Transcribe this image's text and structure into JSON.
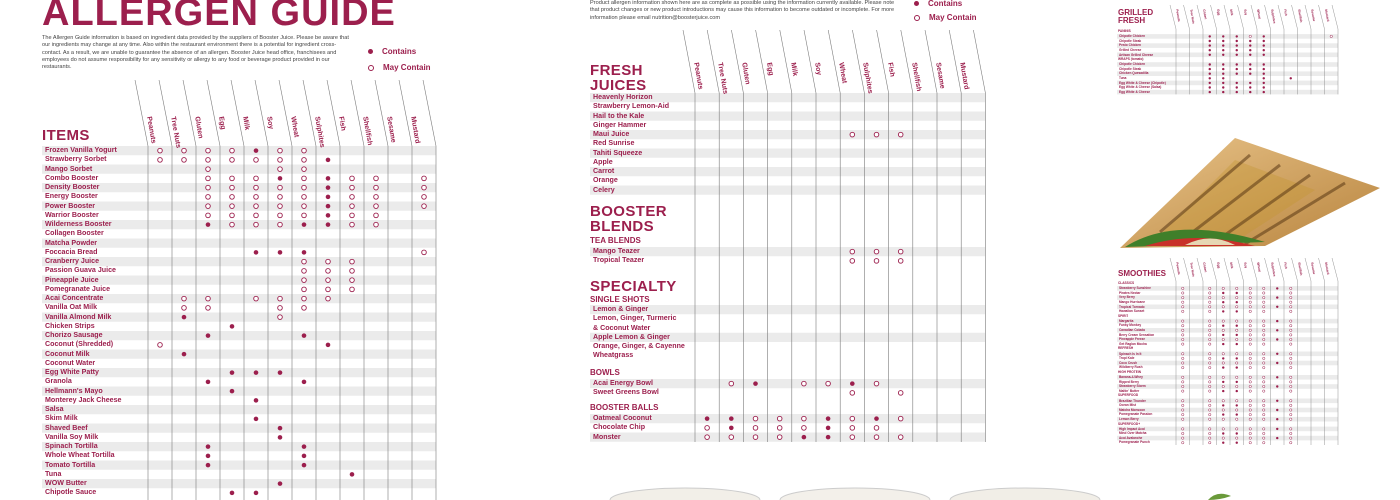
{
  "theme": {
    "accent": "#9c1f4d",
    "stripe": "#ebebeb",
    "line": "#7a7a7a"
  },
  "allergens": [
    "Peanuts",
    "Tree Nuts",
    "Gluten",
    "Egg",
    "Milk",
    "Soy",
    "Wheat",
    "Sulphites",
    "Fish",
    "Shellfish",
    "Sesame",
    "Mustard"
  ],
  "left": {
    "title": "ALLERGEN GUIDE",
    "intro": "The Allergen Guide information is based on ingredient data provided by the suppliers of Booster Juice. Please be aware that our ingredients may change at any time.  Also within the restaurant environment there is a potential for ingredient cross-contact.  As a result, we are unable to guarantee the absence of an allergen. Booster Juice head office, franchisees and employees do not assume responsibility for any sensitivity or allergy to any food or beverage product provided in our restaurants.",
    "legend_contains": "Contains",
    "legend_may": "May Contain",
    "section": "ITEMS",
    "rows": [
      {
        "name": "Frozen Vanilla Yogurt",
        "marks": [
          "o",
          "o",
          "o",
          "o",
          "c",
          "o",
          "o",
          "",
          "",
          "",
          "",
          ""
        ]
      },
      {
        "name": "Strawberry Sorbet",
        "marks": [
          "o",
          "o",
          "o",
          "o",
          "o",
          "o",
          "o",
          "c",
          "",
          "",
          "",
          ""
        ]
      },
      {
        "name": "Mango Sorbet",
        "marks": [
          "",
          "",
          "o",
          "",
          "",
          "o",
          "o",
          "",
          "",
          "",
          "",
          ""
        ]
      },
      {
        "name": "Combo Booster",
        "marks": [
          "",
          "",
          "o",
          "o",
          "o",
          "c",
          "o",
          "c",
          "o",
          "o",
          "",
          "o"
        ]
      },
      {
        "name": "Density Booster",
        "marks": [
          "",
          "",
          "o",
          "o",
          "o",
          "o",
          "o",
          "c",
          "o",
          "o",
          "",
          "o"
        ]
      },
      {
        "name": "Energy Booster",
        "marks": [
          "",
          "",
          "o",
          "o",
          "o",
          "o",
          "o",
          "c",
          "o",
          "o",
          "",
          "o"
        ]
      },
      {
        "name": "Power Booster",
        "marks": [
          "",
          "",
          "o",
          "o",
          "o",
          "o",
          "o",
          "c",
          "o",
          "o",
          "",
          "o"
        ]
      },
      {
        "name": "Warrior Booster",
        "marks": [
          "",
          "",
          "o",
          "o",
          "o",
          "o",
          "o",
          "c",
          "o",
          "o",
          "",
          ""
        ]
      },
      {
        "name": "Wilderness Booster",
        "marks": [
          "",
          "",
          "c",
          "o",
          "o",
          "o",
          "c",
          "c",
          "o",
          "o",
          "",
          ""
        ]
      },
      {
        "name": "Collagen Booster",
        "marks": [
          "",
          "",
          "",
          "",
          "",
          "",
          "",
          "",
          "",
          "",
          "",
          ""
        ]
      },
      {
        "name": "Matcha Powder",
        "marks": [
          "",
          "",
          "",
          "",
          "",
          "",
          "",
          "",
          "",
          "",
          "",
          ""
        ]
      },
      {
        "name": "Foccacia Bread",
        "marks": [
          "",
          "",
          "",
          "",
          "c",
          "c",
          "c",
          "",
          "",
          "",
          "",
          "o"
        ]
      },
      {
        "name": "Cranberry Juice",
        "marks": [
          "",
          "",
          "",
          "",
          "",
          "",
          "o",
          "o",
          "o",
          "",
          "",
          ""
        ]
      },
      {
        "name": "Passion Guava Juice",
        "marks": [
          "",
          "",
          "",
          "",
          "",
          "",
          "o",
          "o",
          "o",
          "",
          "",
          ""
        ]
      },
      {
        "name": "Pineapple Juice",
        "marks": [
          "",
          "",
          "",
          "",
          "",
          "",
          "o",
          "o",
          "o",
          "",
          "",
          ""
        ]
      },
      {
        "name": "Pomegranate Juice",
        "marks": [
          "",
          "",
          "",
          "",
          "",
          "",
          "o",
          "o",
          "o",
          "",
          "",
          ""
        ]
      },
      {
        "name": "Acai Concentrate",
        "marks": [
          "",
          "o",
          "o",
          "",
          "o",
          "o",
          "o",
          "o",
          "",
          "",
          "",
          ""
        ]
      },
      {
        "name": "Vanilla Oat Milk",
        "marks": [
          "",
          "o",
          "o",
          "",
          "",
          "o",
          "o",
          "",
          "",
          "",
          "",
          ""
        ]
      },
      {
        "name": "Vanilla Almond Milk",
        "marks": [
          "",
          "c",
          "",
          "",
          "",
          "o",
          "",
          "",
          "",
          "",
          "",
          ""
        ]
      },
      {
        "name": "Chicken Strips",
        "marks": [
          "",
          "",
          "",
          "c",
          "",
          "",
          "",
          "",
          "",
          "",
          "",
          ""
        ]
      },
      {
        "name": "Chorizo Sausage",
        "marks": [
          "",
          "",
          "c",
          "",
          "",
          "",
          "c",
          "",
          "",
          "",
          "",
          ""
        ]
      },
      {
        "name": "Coconut (Shredded)",
        "marks": [
          "o",
          "",
          "",
          "",
          "",
          "",
          "",
          "c",
          "",
          "",
          "",
          ""
        ]
      },
      {
        "name": "Coconut Milk",
        "marks": [
          "",
          "c",
          "",
          "",
          "",
          "",
          "",
          "",
          "",
          "",
          "",
          ""
        ]
      },
      {
        "name": "Coconut Water",
        "marks": [
          "",
          "",
          "",
          "",
          "",
          "",
          "",
          "",
          "",
          "",
          "",
          ""
        ]
      },
      {
        "name": "Egg White Patty",
        "marks": [
          "",
          "",
          "",
          "c",
          "c",
          "c",
          "",
          "",
          "",
          "",
          "",
          ""
        ]
      },
      {
        "name": "Granola",
        "marks": [
          "",
          "",
          "c",
          "",
          "",
          "",
          "c",
          "",
          "",
          "",
          "",
          ""
        ]
      },
      {
        "name": "Hellmann's Mayo",
        "marks": [
          "",
          "",
          "",
          "c",
          "",
          "",
          "",
          "",
          "",
          "",
          "",
          ""
        ]
      },
      {
        "name": "Monterey Jack Cheese",
        "marks": [
          "",
          "",
          "",
          "",
          "c",
          "",
          "",
          "",
          "",
          "",
          "",
          ""
        ]
      },
      {
        "name": "Salsa",
        "marks": [
          "",
          "",
          "",
          "",
          "",
          "",
          "",
          "",
          "",
          "",
          "",
          ""
        ]
      },
      {
        "name": "Skim Milk",
        "marks": [
          "",
          "",
          "",
          "",
          "c",
          "",
          "",
          "",
          "",
          "",
          "",
          ""
        ]
      },
      {
        "name": "Shaved Beef",
        "marks": [
          "",
          "",
          "",
          "",
          "",
          "c",
          "",
          "",
          "",
          "",
          "",
          ""
        ]
      },
      {
        "name": "Vanilla Soy Milk",
        "marks": [
          "",
          "",
          "",
          "",
          "",
          "c",
          "",
          "",
          "",
          "",
          "",
          ""
        ]
      },
      {
        "name": "Spinach Tortilla",
        "marks": [
          "",
          "",
          "c",
          "",
          "",
          "",
          "c",
          "",
          "",
          "",
          "",
          ""
        ]
      },
      {
        "name": "Whole Wheat Tortilla",
        "marks": [
          "",
          "",
          "c",
          "",
          "",
          "",
          "c",
          "",
          "",
          "",
          "",
          ""
        ]
      },
      {
        "name": "Tomato Tortilla",
        "marks": [
          "",
          "",
          "c",
          "",
          "",
          "",
          "c",
          "",
          "",
          "",
          "",
          ""
        ]
      },
      {
        "name": "Tuna",
        "marks": [
          "",
          "",
          "",
          "",
          "",
          "",
          "",
          "",
          "c",
          "",
          "",
          ""
        ]
      },
      {
        "name": "WOW Butter",
        "marks": [
          "",
          "",
          "",
          "",
          "",
          "c",
          "",
          "",
          "",
          "",
          "",
          ""
        ]
      },
      {
        "name": "Chipotle Sauce",
        "marks": [
          "",
          "",
          "",
          "c",
          "c",
          "",
          "",
          "",
          "",
          "",
          "",
          ""
        ]
      }
    ]
  },
  "middle": {
    "intro": "Product allergen information shown here are as complete as possible using the information currently available. Please note that product changes or new product introductions may cause this information to become outdated or incomplete. For more information please email  nutrition@boosterjuice.com",
    "legend_contains": "Contains",
    "legend_may": "May Contain",
    "fresh_title_1": "FRESH",
    "fresh_title_2": "JUICES",
    "fresh_rows": [
      {
        "name": "Heavenly Horizon",
        "marks": [
          "",
          "",
          "",
          "",
          "",
          "",
          "",
          "",
          "",
          "",
          "",
          ""
        ]
      },
      {
        "name": "Strawberry Lemon-Aid",
        "marks": [
          "",
          "",
          "",
          "",
          "",
          "",
          "",
          "",
          "",
          "",
          "",
          ""
        ]
      },
      {
        "name": "Hail to the Kale",
        "marks": [
          "",
          "",
          "",
          "",
          "",
          "",
          "",
          "",
          "",
          "",
          "",
          ""
        ]
      },
      {
        "name": "Ginger Hammer",
        "marks": [
          "",
          "",
          "",
          "",
          "",
          "",
          "",
          "",
          "",
          "",
          "",
          ""
        ]
      },
      {
        "name": "Maui Juice",
        "marks": [
          "",
          "",
          "",
          "",
          "",
          "",
          "o",
          "o",
          "o",
          "",
          "",
          ""
        ]
      },
      {
        "name": "Red Sunrise",
        "marks": [
          "",
          "",
          "",
          "",
          "",
          "",
          "",
          "",
          "",
          "",
          "",
          ""
        ]
      },
      {
        "name": "Tahiti Squeeze",
        "marks": [
          "",
          "",
          "",
          "",
          "",
          "",
          "",
          "",
          "",
          "",
          "",
          ""
        ]
      },
      {
        "name": "Apple",
        "marks": [
          "",
          "",
          "",
          "",
          "",
          "",
          "",
          "",
          "",
          "",
          "",
          ""
        ]
      },
      {
        "name": "Carrot",
        "marks": [
          "",
          "",
          "",
          "",
          "",
          "",
          "",
          "",
          "",
          "",
          "",
          ""
        ]
      },
      {
        "name": "Orange",
        "marks": [
          "",
          "",
          "",
          "",
          "",
          "",
          "",
          "",
          "",
          "",
          "",
          ""
        ]
      },
      {
        "name": "Celery",
        "marks": [
          "",
          "",
          "",
          "",
          "",
          "",
          "",
          "",
          "",
          "",
          "",
          ""
        ]
      }
    ],
    "booster_title_1": "BOOSTER",
    "booster_title_2": "BLENDS",
    "tea_label": "TEA BLENDS",
    "tea_rows": [
      {
        "name": "Mango Teazer",
        "marks": [
          "",
          "",
          "",
          "",
          "",
          "",
          "o",
          "o",
          "o",
          "",
          "",
          ""
        ]
      },
      {
        "name": "Tropical Teazer",
        "marks": [
          "",
          "",
          "",
          "",
          "",
          "",
          "o",
          "o",
          "o",
          "",
          "",
          ""
        ]
      }
    ],
    "specialty_title": "SPECIALTY",
    "shots_label": "SINGLE SHOTS",
    "shots_rows": [
      {
        "name": "Lemon & Ginger",
        "marks": [
          "",
          "",
          "",
          "",
          "",
          "",
          "",
          "",
          "",
          "",
          "",
          ""
        ],
        "h": 1
      },
      {
        "name": "Lemon, Ginger, Turmeric\n& Coconut Water",
        "marks": [
          "",
          "",
          "",
          "",
          "",
          "",
          "",
          "",
          "",
          "",
          "",
          ""
        ],
        "h": 2
      },
      {
        "name": "Apple Lemon & Ginger",
        "marks": [
          "",
          "",
          "",
          "",
          "",
          "",
          "",
          "",
          "",
          "",
          "",
          ""
        ],
        "h": 1
      },
      {
        "name": "Orange, Ginger, & Cayenne\nWheatgrass",
        "marks": [
          "",
          "",
          "",
          "",
          "",
          "",
          "",
          "",
          "",
          "",
          "",
          ""
        ],
        "h": 2
      }
    ],
    "bowls_label": "BOWLS",
    "bowls_rows": [
      {
        "name": "Acai Energy Bowl",
        "marks": [
          "",
          "o",
          "c",
          "",
          "o",
          "o",
          "c",
          "o",
          "",
          "",
          "",
          ""
        ]
      },
      {
        "name": "Sweet Greens Bowl",
        "marks": [
          "",
          "",
          "",
          "",
          "",
          "",
          "o",
          "",
          "o",
          "",
          "",
          ""
        ]
      }
    ],
    "balls_label": "BOOSTER BALLS",
    "balls_rows": [
      {
        "name": "Oatmeal Coconut",
        "marks": [
          "c",
          "c",
          "o",
          "o",
          "o",
          "c",
          "o",
          "c",
          "o",
          "",
          "",
          ""
        ]
      },
      {
        "name": "Chocolate Chip",
        "marks": [
          "o",
          "c",
          "o",
          "o",
          "o",
          "c",
          "o",
          "o",
          "",
          "",
          "",
          ""
        ]
      },
      {
        "name": "Monster",
        "marks": [
          "o",
          "o",
          "o",
          "o",
          "c",
          "c",
          "o",
          "o",
          "o",
          "",
          "",
          ""
        ]
      }
    ]
  },
  "right": {
    "grilled_title_1": "GRILLED",
    "grilled_title_2": "FRESH",
    "grilled_groups": [
      {
        "label": "PANINIS",
        "items": [
          "Chipotle Chicken",
          "Chipotle Steak",
          "Pesto Chicken",
          "Grilled Cheese",
          "Artisan Grilled Cheese"
        ]
      },
      {
        "label": "WRAPS (tomato)",
        "items": [
          "Chipotle Chicken",
          "Chipotle Steak",
          "Chicken Quesadilla",
          "Tuna",
          "Egg White & Cheese (Chipotle)",
          "Egg White & Cheese (Salsa)",
          "Egg White & Cheese"
        ]
      }
    ],
    "smoothies_title": "SMOOTHIES",
    "smoothie_groups": [
      {
        "label": "CLASSICS",
        "items": [
          "Strawberry Sunshine",
          "Pirates Nectar",
          "Very Berry",
          "Mango Hurricane",
          "Tropical Tornado",
          "Hawaiian Sunset"
        ]
      },
      {
        "label": "SPIRIT",
        "items": [
          "Margarita",
          "Funky Monkey",
          "Canadian Colada",
          "Berry Cream Sensation",
          "Pineapple Freeze",
          "Get Raglan Mocha"
        ]
      },
      {
        "label": "REFRESH",
        "items": [
          "Spinach Is In It",
          "Tropi Kale",
          "Coco Crush",
          "Wildberry Rush"
        ]
      },
      {
        "label": "HIGH PROTEIN",
        "items": [
          "Banana-4-Whey",
          "Ripped Berry",
          "Strawberry Storm",
          "Maltin' Butter"
        ]
      },
      {
        "label": "SUPERFOOD",
        "items": [
          "Brazilian Thunder",
          "Ocean Mist",
          "Matcha Monsoon",
          "Pomegranate Passion",
          "Lemon Berry"
        ]
      },
      {
        "label": "SUPERFOOD+",
        "items": [
          "High Impact Acai",
          "Mind Over Matcha",
          "Acai Avalanche",
          "Pomegranate Punch"
        ]
      }
    ]
  }
}
